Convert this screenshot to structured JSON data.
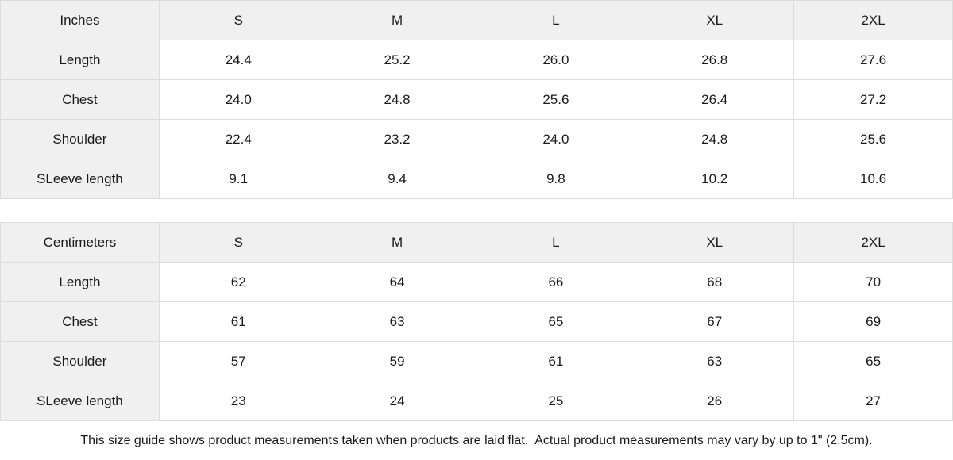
{
  "colors": {
    "header_cell_bg": "#f0f0f0",
    "border": "#dcdcdc",
    "text": "#1a1a1a",
    "page_bg": "#ffffff"
  },
  "chart_data": [
    {
      "type": "table",
      "unit_label": "Inches",
      "columns": [
        "S",
        "M",
        "L",
        "XL",
        "2XL"
      ],
      "rows": [
        {
          "label": "Length",
          "values": [
            "24.4",
            "25.2",
            "26.0",
            "26.8",
            "27.6"
          ]
        },
        {
          "label": "Chest",
          "values": [
            "24.0",
            "24.8",
            "25.6",
            "26.4",
            "27.2"
          ]
        },
        {
          "label": "Shoulder",
          "values": [
            "22.4",
            "23.2",
            "24.0",
            "24.8",
            "25.6"
          ]
        },
        {
          "label": "SLeeve length",
          "values": [
            "9.1",
            "9.4",
            "9.8",
            "10.2",
            "10.6"
          ]
        }
      ]
    },
    {
      "type": "table",
      "unit_label": "Centimeters",
      "columns": [
        "S",
        "M",
        "L",
        "XL",
        "2XL"
      ],
      "rows": [
        {
          "label": "Length",
          "values": [
            "62",
            "64",
            "66",
            "68",
            "70"
          ]
        },
        {
          "label": "Chest",
          "values": [
            "61",
            "63",
            "65",
            "67",
            "69"
          ]
        },
        {
          "label": "Shoulder",
          "values": [
            "57",
            "59",
            "61",
            "63",
            "65"
          ]
        },
        {
          "label": "SLeeve length",
          "values": [
            "23",
            "24",
            "25",
            "26",
            "27"
          ]
        }
      ]
    }
  ],
  "footer": {
    "note": "This size guide shows product measurements taken when products are laid flat.  Actual product measurements may vary by up to 1\" (2.5cm)."
  }
}
